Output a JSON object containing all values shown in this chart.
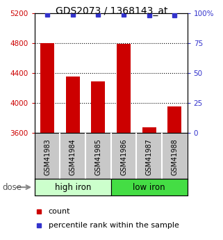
{
  "title": "GDS2073 / 1368143_at",
  "categories": [
    "GSM41983",
    "GSM41984",
    "GSM41985",
    "GSM41986",
    "GSM41987",
    "GSM41988"
  ],
  "bar_values": [
    4800,
    4360,
    4290,
    4790,
    3680,
    3960
  ],
  "percentile_values": [
    99,
    99,
    99,
    99,
    98,
    98
  ],
  "bar_color": "#cc0000",
  "dot_color": "#3333cc",
  "ylim_left": [
    3600,
    5200
  ],
  "ylim_right": [
    0,
    100
  ],
  "yticks_left": [
    3600,
    4000,
    4400,
    4800,
    5200
  ],
  "yticks_right": [
    0,
    25,
    50,
    75,
    100
  ],
  "ytick_labels_right": [
    "0",
    "25",
    "50",
    "75",
    "100%"
  ],
  "grid_values": [
    4000,
    4400,
    4800
  ],
  "groups": [
    {
      "label": "high iron",
      "indices": [
        0,
        1,
        2
      ],
      "color": "#ccffcc"
    },
    {
      "label": "low iron",
      "indices": [
        3,
        4,
        5
      ],
      "color": "#44dd44"
    }
  ],
  "dose_label": "dose",
  "legend_count_label": "count",
  "legend_pct_label": "percentile rank within the sample",
  "title_fontsize": 10,
  "tick_fontsize": 7.5,
  "label_fontsize": 8,
  "bar_width": 0.55,
  "background_color": "#ffffff",
  "plot_bg_color": "#ffffff",
  "group_label_fontsize": 8.5,
  "xtick_bg_color": "#c8c8c8",
  "xtick_label_fontsize": 7
}
